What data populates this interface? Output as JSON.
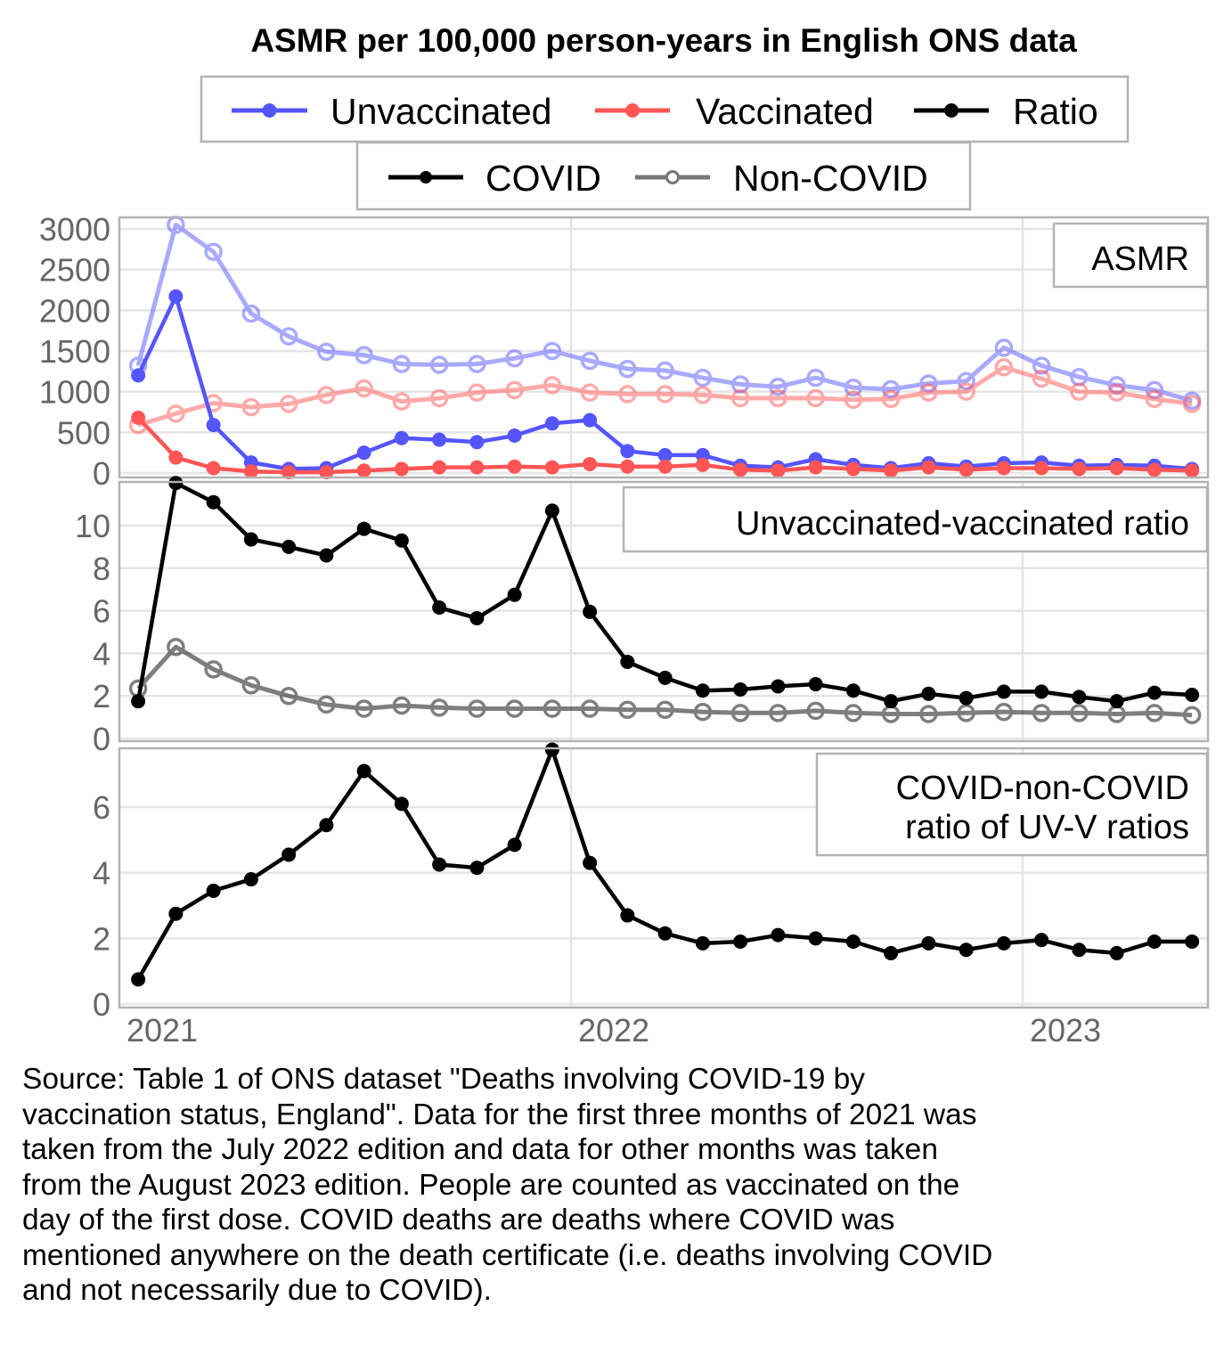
{
  "chart_data": {
    "type": "line",
    "title": "ASMR per 100,000 person-years in English ONS data",
    "legend": {
      "placement": "top",
      "row1": [
        {
          "label": "Unvaccinated",
          "color": "#5555ff",
          "marker": "filled-circle"
        },
        {
          "label": "Vaccinated",
          "color": "#ff5555",
          "marker": "filled-circle"
        },
        {
          "label": "Ratio",
          "color": "#000000",
          "marker": "filled-circle"
        }
      ],
      "row2": [
        {
          "label": "COVID",
          "color": "#000000",
          "marker": "filled-circle"
        },
        {
          "label": "Non-COVID",
          "color": "#777777",
          "marker": "open-circle"
        }
      ]
    },
    "x": [
      "2021-01",
      "2021-02",
      "2021-03",
      "2021-04",
      "2021-05",
      "2021-06",
      "2021-07",
      "2021-08",
      "2021-09",
      "2021-10",
      "2021-11",
      "2021-12",
      "2022-01",
      "2022-02",
      "2022-03",
      "2022-04",
      "2022-05",
      "2022-06",
      "2022-07",
      "2022-08",
      "2022-09",
      "2022-10",
      "2022-11",
      "2022-12",
      "2023-01",
      "2023-02",
      "2023-03",
      "2023-04",
      "2023-05"
    ],
    "xticks": [
      {
        "label": "2021",
        "month_index": 0
      },
      {
        "label": "2022",
        "month_index": 12
      },
      {
        "label": "2023",
        "month_index": 24
      }
    ],
    "panels": [
      {
        "strip_label": "ASMR",
        "ylim": [
          0,
          3100
        ],
        "yticks": [
          0,
          500,
          1000,
          1500,
          2000,
          2500,
          3000
        ],
        "grid": true,
        "series": [
          {
            "name": "Unvaccinated Non-COVID",
            "color": "#5555ff",
            "alpha": 0.5,
            "marker": "open",
            "values": [
              1320,
              3050,
              2720,
              1960,
              1680,
              1490,
              1450,
              1340,
              1330,
              1340,
              1410,
              1500,
              1380,
              1280,
              1260,
              1170,
              1090,
              1060,
              1170,
              1050,
              1030,
              1100,
              1130,
              1540,
              1320,
              1180,
              1080,
              1020,
              890
            ]
          },
          {
            "name": "Vaccinated Non-COVID",
            "color": "#ff5555",
            "alpha": 0.5,
            "marker": "open",
            "values": [
              590,
              730,
              860,
              810,
              850,
              960,
              1040,
              880,
              920,
              990,
              1020,
              1080,
              990,
              970,
              970,
              960,
              920,
              920,
              920,
              900,
              910,
              990,
              1000,
              1300,
              1160,
              1000,
              990,
              910,
              850
            ]
          },
          {
            "name": "Unvaccinated COVID",
            "color": "#5555ff",
            "alpha": 1,
            "marker": "filled",
            "values": [
              1200,
              2170,
              590,
              130,
              50,
              60,
              250,
              430,
              410,
              380,
              460,
              610,
              650,
              270,
              220,
              220,
              90,
              70,
              170,
              100,
              60,
              120,
              80,
              120,
              130,
              90,
              100,
              90,
              50
            ]
          },
          {
            "name": "Vaccinated COVID",
            "color": "#ff5555",
            "alpha": 1,
            "marker": "filled",
            "values": [
              680,
              190,
              60,
              20,
              10,
              10,
              30,
              50,
              70,
              70,
              80,
              70,
              110,
              80,
              80,
              100,
              40,
              30,
              70,
              50,
              30,
              70,
              40,
              60,
              60,
              50,
              60,
              40,
              30
            ]
          }
        ]
      },
      {
        "strip_label": "Unvaccinated-vaccinated ratio",
        "ylim": [
          0,
          12
        ],
        "yticks": [
          0,
          2,
          4,
          6,
          8,
          10
        ],
        "grid": true,
        "series": [
          {
            "name": "Ratio Non-COVID",
            "color": "#000000",
            "alpha": 0.5,
            "marker": "open",
            "values": [
              2.35,
              4.3,
              3.25,
              2.5,
              2.0,
              1.6,
              1.4,
              1.55,
              1.45,
              1.4,
              1.4,
              1.4,
              1.4,
              1.35,
              1.35,
              1.25,
              1.2,
              1.2,
              1.3,
              1.2,
              1.15,
              1.15,
              1.2,
              1.25,
              1.2,
              1.2,
              1.15,
              1.2,
              1.1
            ]
          },
          {
            "name": "Ratio COVID",
            "color": "#000000",
            "alpha": 1,
            "marker": "filled",
            "values": [
              1.75,
              12.0,
              11.1,
              9.35,
              9.0,
              8.6,
              9.85,
              9.3,
              6.15,
              5.65,
              6.75,
              10.7,
              5.95,
              3.6,
              2.85,
              2.25,
              2.3,
              2.45,
              2.55,
              2.25,
              1.75,
              2.1,
              1.9,
              2.2,
              2.2,
              1.95,
              1.75,
              2.15,
              2.05
            ]
          }
        ]
      },
      {
        "strip_label": "COVID-non-COVID\nratio of UV-V ratios",
        "strip_lines": [
          "COVID-non-COVID",
          "ratio of UV-V ratios"
        ],
        "ylim": [
          0,
          7.75
        ],
        "yticks": [
          0,
          2,
          4,
          6
        ],
        "grid": true,
        "series": [
          {
            "name": "Ratio of ratios",
            "color": "#000000",
            "alpha": 1,
            "marker": "filled",
            "values": [
              0.75,
              2.75,
              3.45,
              3.8,
              4.55,
              5.45,
              7.1,
              6.1,
              4.25,
              4.15,
              4.85,
              7.75,
              4.3,
              2.7,
              2.15,
              1.85,
              1.9,
              2.1,
              2.0,
              1.9,
              1.55,
              1.85,
              1.65,
              1.85,
              1.95,
              1.65,
              1.55,
              1.9,
              1.9
            ]
          }
        ]
      }
    ]
  },
  "caption": "Source: Table 1 of ONS dataset \"Deaths involving COVID-19 by\nvaccination status, England\". Data for the first three months of 2021 was\ntaken from the July 2022 edition and data for other months was taken\nfrom the August 2023 edition. People are counted as vaccinated on the\nday of the first dose. COVID deaths are deaths where COVID was\nmentioned anywhere on the death certificate (i.e. deaths involving COVID\nand not necessarily due to COVID)."
}
